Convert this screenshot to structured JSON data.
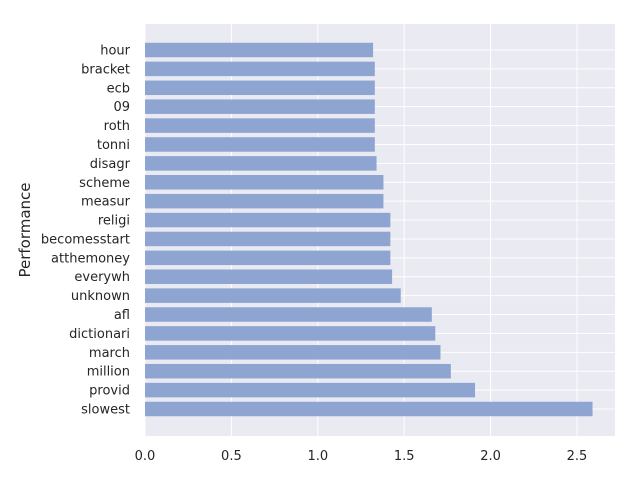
{
  "chart_data": {
    "type": "bar",
    "orientation": "horizontal",
    "categories": [
      "slowest",
      "provid",
      "million",
      "march",
      "dictionari",
      "afl",
      "unknown",
      "everywh",
      "atthemoney",
      "becomesstart",
      "religi",
      "measur",
      "scheme",
      "disagr",
      "tonni",
      "roth",
      "09",
      "ecb",
      "bracket",
      "hour"
    ],
    "values": [
      2.59,
      1.91,
      1.77,
      1.71,
      1.68,
      1.66,
      1.48,
      1.43,
      1.42,
      1.42,
      1.42,
      1.38,
      1.38,
      1.34,
      1.33,
      1.33,
      1.33,
      1.33,
      1.33,
      1.32
    ],
    "title": "",
    "xlabel": "",
    "ylabel": "Performance",
    "xlim": [
      0,
      2.72
    ],
    "xticks": [
      "0.0",
      "0.5",
      "1.0",
      "1.5",
      "2.0",
      "2.5"
    ],
    "grid": true,
    "colors": {
      "bar": "#8ea5d1",
      "background": "#eaeaf2",
      "grid": "#ffffff"
    }
  }
}
